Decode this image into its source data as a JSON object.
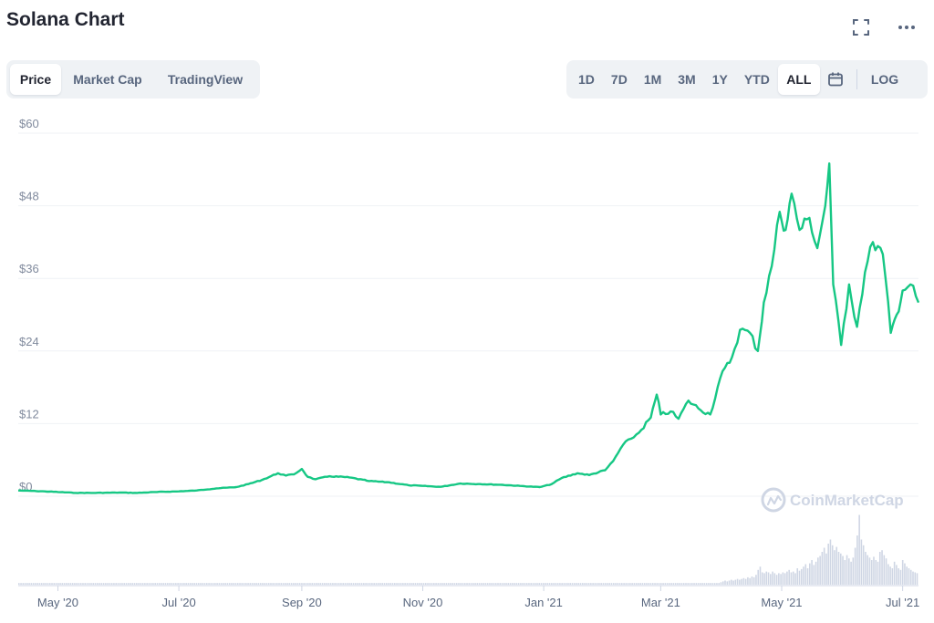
{
  "title": "Solana Chart",
  "top_icons": [
    "fullscreen-icon",
    "more-icon"
  ],
  "view_tabs": [
    {
      "label": "Price",
      "active": true
    },
    {
      "label": "Market Cap",
      "active": false
    },
    {
      "label": "TradingView",
      "active": false
    }
  ],
  "range_tabs": [
    {
      "label": "1D",
      "active": false
    },
    {
      "label": "7D",
      "active": false
    },
    {
      "label": "1M",
      "active": false
    },
    {
      "label": "3M",
      "active": false
    },
    {
      "label": "1Y",
      "active": false
    },
    {
      "label": "YTD",
      "active": false
    },
    {
      "label": "ALL",
      "active": true
    }
  ],
  "calendar_icon": "calendar-icon",
  "log_label": "LOG",
  "watermark": "CoinMarketCap",
  "colors": {
    "line": "#16c784",
    "grid": "#eff2f5",
    "volume": "#cfd6e4",
    "axis_text": "#808a9d"
  },
  "chart_data": {
    "type": "line",
    "y_ticks": [
      "$60",
      "$48",
      "$36",
      "$24",
      "$12",
      "$0"
    ],
    "y_tick_values": [
      60,
      48,
      36,
      24,
      12,
      0
    ],
    "ylim": [
      0,
      60
    ],
    "x_tick_labels": [
      "May '20",
      "Jul '20",
      "Sep '20",
      "Nov '20",
      "Jan '21",
      "Mar '21",
      "May '21",
      "Jul '21"
    ],
    "x_tick_dates": [
      "2020-05-01",
      "2020-07-01",
      "2020-09-01",
      "2020-11-01",
      "2021-01-01",
      "2021-03-01",
      "2021-05-01",
      "2021-07-01"
    ],
    "xlim": [
      "2020-04-11",
      "2021-07-09"
    ],
    "grid": true,
    "series": [
      {
        "type": "line",
        "points": [
          [
            "2020-04-11",
            0.95
          ],
          [
            "2020-04-20",
            0.85
          ],
          [
            "2020-05-01",
            0.7
          ],
          [
            "2020-05-10",
            0.55
          ],
          [
            "2020-05-20",
            0.55
          ],
          [
            "2020-06-01",
            0.6
          ],
          [
            "2020-06-10",
            0.55
          ],
          [
            "2020-06-20",
            0.7
          ],
          [
            "2020-07-01",
            0.8
          ],
          [
            "2020-07-10",
            0.95
          ],
          [
            "2020-07-20",
            1.3
          ],
          [
            "2020-07-30",
            1.5
          ],
          [
            "2020-08-05",
            2.0
          ],
          [
            "2020-08-12",
            2.7
          ],
          [
            "2020-08-20",
            3.8
          ],
          [
            "2020-08-24",
            3.4
          ],
          [
            "2020-08-28",
            3.6
          ],
          [
            "2020-09-01",
            4.5
          ],
          [
            "2020-09-04",
            3.2
          ],
          [
            "2020-09-08",
            2.8
          ],
          [
            "2020-09-15",
            3.3
          ],
          [
            "2020-09-25",
            3.1
          ],
          [
            "2020-10-05",
            2.5
          ],
          [
            "2020-10-15",
            2.3
          ],
          [
            "2020-10-25",
            1.8
          ],
          [
            "2020-11-01",
            1.7
          ],
          [
            "2020-11-10",
            1.55
          ],
          [
            "2020-11-20",
            2.1
          ],
          [
            "2020-11-30",
            2.0
          ],
          [
            "2020-12-10",
            1.9
          ],
          [
            "2020-12-20",
            1.7
          ],
          [
            "2020-12-30",
            1.5
          ],
          [
            "2021-01-05",
            2.0
          ],
          [
            "2021-01-10",
            3.0
          ],
          [
            "2021-01-18",
            3.8
          ],
          [
            "2021-01-24",
            3.5
          ],
          [
            "2021-02-01",
            4.3
          ],
          [
            "2021-02-05",
            5.8
          ],
          [
            "2021-02-10",
            8.5
          ],
          [
            "2021-02-14",
            9.5
          ],
          [
            "2021-02-18",
            10.5
          ],
          [
            "2021-02-24",
            13.0
          ],
          [
            "2021-02-27",
            16.8
          ],
          [
            "2021-03-01",
            13.5
          ],
          [
            "2021-03-06",
            14.0
          ],
          [
            "2021-03-10",
            12.8
          ],
          [
            "2021-03-15",
            15.8
          ],
          [
            "2021-03-20",
            14.5
          ],
          [
            "2021-03-26",
            13.5
          ],
          [
            "2021-03-31",
            19.5
          ],
          [
            "2021-04-06",
            23.0
          ],
          [
            "2021-04-10",
            27.5
          ],
          [
            "2021-04-15",
            27.0
          ],
          [
            "2021-04-19",
            24.0
          ],
          [
            "2021-04-22",
            32.0
          ],
          [
            "2021-04-26",
            38.0
          ],
          [
            "2021-04-30",
            47.0
          ],
          [
            "2021-05-03",
            44.0
          ],
          [
            "2021-05-06",
            50.0
          ],
          [
            "2021-05-10",
            44.0
          ],
          [
            "2021-05-15",
            46.0
          ],
          [
            "2021-05-19",
            41.0
          ],
          [
            "2021-05-23",
            48.0
          ],
          [
            "2021-05-25",
            55.0
          ],
          [
            "2021-05-27",
            35.0
          ],
          [
            "2021-05-31",
            25.0
          ],
          [
            "2021-06-04",
            35.0
          ],
          [
            "2021-06-08",
            28.0
          ],
          [
            "2021-06-12",
            37.0
          ],
          [
            "2021-06-16",
            42.0
          ],
          [
            "2021-06-21",
            40.0
          ],
          [
            "2021-06-25",
            27.0
          ],
          [
            "2021-06-28",
            30.0
          ],
          [
            "2021-07-01",
            34.0
          ],
          [
            "2021-07-05",
            35.0
          ],
          [
            "2021-07-09",
            32.0
          ]
        ]
      }
    ],
    "volume_relative": [
      0.02,
      0.02,
      0.02,
      0.02,
      0.02,
      0.02,
      0.02,
      0.02,
      0.02,
      0.02,
      0.02,
      0.02,
      0.02,
      0.02,
      0.02,
      0.02,
      0.02,
      0.02,
      0.02,
      0.02,
      0.02,
      0.02,
      0.02,
      0.02,
      0.02,
      0.02,
      0.02,
      0.02,
      0.02,
      0.02,
      0.02,
      0.02,
      0.02,
      0.02,
      0.02,
      0.02,
      0.02,
      0.02,
      0.02,
      0.02,
      0.02,
      0.02,
      0.02,
      0.02,
      0.02,
      0.02,
      0.02,
      0.02,
      0.02,
      0.02,
      0.02,
      0.02,
      0.02,
      0.02,
      0.02,
      0.02,
      0.02,
      0.02,
      0.02,
      0.02,
      0.02,
      0.02,
      0.02,
      0.02,
      0.02,
      0.02,
      0.02,
      0.02,
      0.02,
      0.02,
      0.02,
      0.02,
      0.02,
      0.02,
      0.02,
      0.02,
      0.02,
      0.02,
      0.02,
      0.02,
      0.02,
      0.02,
      0.02,
      0.02,
      0.02,
      0.02,
      0.02,
      0.02,
      0.02,
      0.02,
      0.02,
      0.02,
      0.02,
      0.02,
      0.02,
      0.02,
      0.02,
      0.02,
      0.02,
      0.02,
      0.02,
      0.02,
      0.02,
      0.02,
      0.02,
      0.02,
      0.02,
      0.02,
      0.02,
      0.02,
      0.02,
      0.02,
      0.02,
      0.02,
      0.02,
      0.02,
      0.02,
      0.02,
      0.02,
      0.02,
      0.02,
      0.02,
      0.02,
      0.02,
      0.02,
      0.02,
      0.02,
      0.02,
      0.02,
      0.02,
      0.02,
      0.02,
      0.02,
      0.02,
      0.02,
      0.02,
      0.02,
      0.02,
      0.02,
      0.02,
      0.02,
      0.02,
      0.02,
      0.02,
      0.02,
      0.02,
      0.02,
      0.02,
      0.02,
      0.02,
      0.02,
      0.02,
      0.02,
      0.02,
      0.02,
      0.02,
      0.02,
      0.02,
      0.02,
      0.02,
      0.02,
      0.02,
      0.02,
      0.02,
      0.02,
      0.02,
      0.02,
      0.02,
      0.02,
      0.02,
      0.02,
      0.02,
      0.02,
      0.02,
      0.02,
      0.02,
      0.02,
      0.02,
      0.02,
      0.02,
      0.02,
      0.02,
      0.02,
      0.02,
      0.02,
      0.02,
      0.02,
      0.02,
      0.02,
      0.02,
      0.02,
      0.02,
      0.02,
      0.02,
      0.02,
      0.02,
      0.02,
      0.02,
      0.02,
      0.02,
      0.02,
      0.02,
      0.02,
      0.02,
      0.02,
      0.02,
      0.02,
      0.02,
      0.02,
      0.02,
      0.02,
      0.02,
      0.02,
      0.02,
      0.02,
      0.02,
      0.02,
      0.02,
      0.02,
      0.02,
      0.02,
      0.02,
      0.02,
      0.02,
      0.02,
      0.02,
      0.02,
      0.02,
      0.02,
      0.02,
      0.02,
      0.02,
      0.02,
      0.02,
      0.02,
      0.02,
      0.02,
      0.02,
      0.02,
      0.02,
      0.02,
      0.02,
      0.02,
      0.02,
      0.02,
      0.02,
      0.02,
      0.02,
      0.02,
      0.02,
      0.02,
      0.02,
      0.02,
      0.02,
      0.02,
      0.02,
      0.02,
      0.02,
      0.02,
      0.02,
      0.02,
      0.02,
      0.02,
      0.02,
      0.02,
      0.02,
      0.02,
      0.02,
      0.02,
      0.02,
      0.02,
      0.02,
      0.02,
      0.02,
      0.02,
      0.02,
      0.02,
      0.02,
      0.02,
      0.02,
      0.02,
      0.02,
      0.02,
      0.02,
      0.02,
      0.02,
      0.02,
      0.02,
      0.02,
      0.02,
      0.02,
      0.02,
      0.02,
      0.02,
      0.02,
      0.02,
      0.02,
      0.02,
      0.02,
      0.02,
      0.02,
      0.02,
      0.02,
      0.02,
      0.02,
      0.02,
      0.02,
      0.02,
      0.02,
      0.02,
      0.02,
      0.02,
      0.02,
      0.02,
      0.02,
      0.02,
      0.02,
      0.02,
      0.02,
      0.02,
      0.02,
      0.02,
      0.02,
      0.02,
      0.02,
      0.02,
      0.02,
      0.02,
      0.02,
      0.02,
      0.02,
      0.02,
      0.02,
      0.02,
      0.02,
      0.02,
      0.02,
      0.02,
      0.02,
      0.02,
      0.03,
      0.04,
      0.05,
      0.04,
      0.05,
      0.06,
      0.05,
      0.06,
      0.07,
      0.06,
      0.07,
      0.08,
      0.07,
      0.09,
      0.08,
      0.1,
      0.09,
      0.12,
      0.18,
      0.22,
      0.15,
      0.14,
      0.16,
      0.15,
      0.13,
      0.16,
      0.14,
      0.12,
      0.14,
      0.13,
      0.15,
      0.14,
      0.16,
      0.18,
      0.15,
      0.16,
      0.14,
      0.2,
      0.17,
      0.19,
      0.22,
      0.25,
      0.2,
      0.26,
      0.3,
      0.24,
      0.28,
      0.33,
      0.35,
      0.4,
      0.45,
      0.38,
      0.5,
      0.55,
      0.48,
      0.42,
      0.46,
      0.4,
      0.38,
      0.35,
      0.3,
      0.36,
      0.32,
      0.28,
      0.33,
      0.45,
      0.6,
      0.85,
      0.55,
      0.48,
      0.4,
      0.36,
      0.33,
      0.3,
      0.34,
      0.3,
      0.28,
      0.4,
      0.42,
      0.36,
      0.32,
      0.25,
      0.22,
      0.2,
      0.28,
      0.24,
      0.2,
      0.18,
      0.3,
      0.26,
      0.22,
      0.2,
      0.18,
      0.16,
      0.15,
      0.14
    ]
  }
}
